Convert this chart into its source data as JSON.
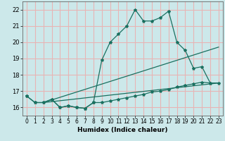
{
  "xlabel": "Humidex (Indice chaleur)",
  "bg_color": "#cce8ea",
  "grid_color": "#e8b4b4",
  "line_color": "#1a7060",
  "xlim": [
    -0.5,
    23.5
  ],
  "ylim": [
    15.5,
    22.5
  ],
  "yticks": [
    16,
    17,
    18,
    19,
    20,
    21,
    22
  ],
  "xticks": [
    0,
    1,
    2,
    3,
    4,
    5,
    6,
    7,
    8,
    9,
    10,
    11,
    12,
    13,
    14,
    15,
    16,
    17,
    18,
    19,
    20,
    21,
    22,
    23
  ],
  "curve1_x": [
    0,
    1,
    2,
    3,
    4,
    5,
    6,
    7,
    8,
    9,
    10,
    11,
    12,
    13,
    14,
    15,
    16,
    17,
    18,
    19,
    20,
    21,
    22
  ],
  "curve1_y": [
    16.7,
    16.3,
    16.3,
    16.5,
    16.0,
    16.1,
    16.0,
    15.95,
    16.3,
    18.9,
    20.0,
    20.5,
    21.0,
    22.0,
    21.3,
    21.3,
    21.5,
    21.9,
    20.0,
    19.5,
    18.4,
    18.5,
    17.5
  ],
  "line1_x": [
    2,
    23
  ],
  "line1_y": [
    16.3,
    17.5
  ],
  "line2_x": [
    2,
    23
  ],
  "line2_y": [
    16.3,
    19.7
  ],
  "curve2_x": [
    0,
    1,
    2,
    3,
    4,
    5,
    6,
    7,
    8,
    9,
    10,
    11,
    12,
    13,
    14,
    15,
    16,
    17,
    18,
    19,
    20,
    21,
    22,
    23
  ],
  "curve2_y": [
    16.7,
    16.3,
    16.3,
    16.5,
    16.0,
    16.1,
    16.0,
    15.95,
    16.3,
    16.3,
    16.4,
    16.5,
    16.6,
    16.7,
    16.8,
    16.95,
    17.0,
    17.1,
    17.25,
    17.35,
    17.45,
    17.55,
    17.5,
    17.5
  ]
}
